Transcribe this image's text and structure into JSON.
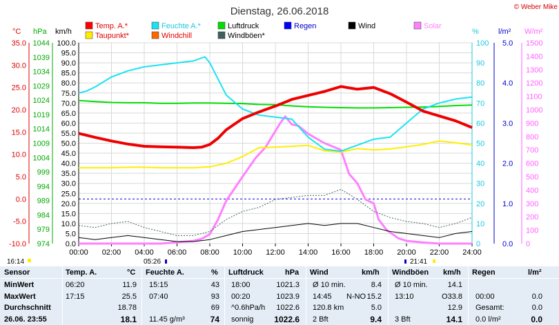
{
  "title": "Dienstag, 26.06.2018",
  "copyright": "© Weber Mike",
  "legend": [
    {
      "label": "Temp. A.*",
      "color": "#ff0000"
    },
    {
      "label": "Feuchte A.*",
      "color": "#19e2f2"
    },
    {
      "label": "Luftdruck",
      "color": "#00dd00"
    },
    {
      "label": "Regen",
      "color": "#0000ff"
    },
    {
      "label": "Wind",
      "color": "#000000"
    },
    {
      "label": "Solar",
      "color": "#ff80ff"
    },
    {
      "label": "Taupunkt*",
      "color": "#ffee00"
    },
    {
      "label": "Windchill",
      "color": "#ff6600"
    },
    {
      "label": "Windböen*",
      "color": "#406060"
    }
  ],
  "axes_units": {
    "temp": "°C",
    "pressure": "hPa",
    "wind": "km/h",
    "humidity": "%",
    "rain": "l/m²",
    "solar": "W/m²"
  },
  "chart_data": {
    "type": "line",
    "x_ticks": [
      "00:00",
      "02:00",
      "04:00",
      "06:00",
      "08:00",
      "10:00",
      "12:00",
      "14:00",
      "16:00",
      "18:00",
      "20:00",
      "22:00",
      "24:00"
    ],
    "temp_ticks": [
      "35.0",
      "30.0",
      "25.0",
      "20.0",
      "15.0",
      "10.0",
      "5.0",
      "0.0",
      "-5.0",
      "-10.0"
    ],
    "pressure_ticks": [
      "1044",
      "1039",
      "1034",
      "1029",
      "1024",
      "1019",
      "1014",
      "1009",
      "1004",
      "999",
      "994",
      "989",
      "984",
      "979",
      "974"
    ],
    "wind_ticks": [
      "100.0",
      "95.0",
      "90.0",
      "85.0",
      "80.0",
      "75.0",
      "70.0",
      "65.0",
      "60.0",
      "55.0",
      "50.0",
      "45.0",
      "40.0",
      "35.0",
      "30.0",
      "25.0",
      "20.0",
      "15.0",
      "10.0",
      "5.0",
      "0.0"
    ],
    "humidity_ticks": [
      "100",
      "90",
      "80",
      "70",
      "60",
      "50",
      "40",
      "30",
      "20",
      "10",
      "0"
    ],
    "rain_ticks": [
      "5.0",
      "4.0",
      "3.0",
      "2.0",
      "1.0",
      "0.0"
    ],
    "solar_ticks": [
      "1500",
      "1400",
      "1300",
      "1200",
      "1100",
      "1000",
      "900",
      "800",
      "700",
      "600",
      "500",
      "400",
      "300",
      "200",
      "100",
      "0"
    ],
    "temp_range": [
      -10,
      35
    ],
    "pressure_range": [
      974,
      1044
    ],
    "wind_range": [
      0,
      100
    ],
    "humidity_range": [
      0,
      100
    ],
    "solar_range": [
      0,
      1500
    ],
    "series": [
      {
        "name": "Temp. A.*",
        "axis": "temp",
        "x": [
          0,
          1,
          2,
          3,
          4,
          5,
          6,
          7,
          7.5,
          8,
          8.5,
          9,
          10,
          11,
          12,
          13,
          14,
          15,
          16,
          17,
          18,
          19,
          20,
          21,
          22,
          23,
          24
        ],
        "y": [
          14.7,
          13.8,
          13.0,
          12.3,
          11.8,
          11.7,
          11.6,
          11.5,
          11.6,
          12.2,
          13.6,
          15.5,
          18.0,
          19.5,
          20.8,
          22.3,
          23.2,
          24.1,
          25.2,
          24.6,
          25.0,
          23.6,
          21.7,
          19.7,
          18.6,
          17.5,
          16.0
        ]
      },
      {
        "name": "Feuchte A.*",
        "axis": "humidity",
        "x": [
          0,
          0.5,
          1,
          2,
          3,
          4,
          5,
          6,
          7,
          7.7,
          8,
          8.5,
          9,
          10,
          11,
          12,
          13,
          14,
          15,
          16,
          17,
          18,
          19,
          20,
          21,
          22,
          23,
          24
        ],
        "y": [
          75,
          76,
          78,
          83,
          86,
          88,
          89,
          90,
          91,
          93,
          90,
          82,
          74,
          67,
          64,
          63,
          62,
          53,
          47,
          46,
          49,
          52,
          53,
          60,
          67,
          70,
          72,
          73
        ]
      },
      {
        "name": "Luftdruck",
        "axis": "pressure",
        "x": [
          0,
          1,
          2,
          3,
          4,
          5,
          6,
          7,
          8,
          9,
          10,
          11,
          12,
          13,
          14,
          15,
          16,
          17,
          18,
          19,
          20,
          21,
          22,
          23,
          24
        ],
        "y": [
          1023.9,
          1023.5,
          1023.2,
          1023.1,
          1023.1,
          1022.9,
          1022.9,
          1023.0,
          1023.0,
          1022.9,
          1022.8,
          1022.5,
          1022.4,
          1022.0,
          1021.7,
          1021.5,
          1021.4,
          1021.3,
          1021.3,
          1021.4,
          1021.5,
          1021.6,
          1021.8,
          1022.1,
          1022.3
        ]
      },
      {
        "name": "Taupunkt*",
        "axis": "temp",
        "x": [
          0,
          1,
          2,
          3,
          4,
          5,
          6,
          7,
          8,
          9,
          10,
          11,
          12,
          13,
          14,
          15,
          16,
          17,
          18,
          19,
          20,
          21,
          22,
          23,
          24
        ],
        "y": [
          7.0,
          7.0,
          7.0,
          7.1,
          7.1,
          7.0,
          7.0,
          7.0,
          7.2,
          8.0,
          9.5,
          11.5,
          11.6,
          11.8,
          12.0,
          10.8,
          10.5,
          11.3,
          11.0,
          11.2,
          11.7,
          12.2,
          13.0,
          12.6,
          12.1
        ]
      },
      {
        "name": "Wind",
        "axis": "wind",
        "x": [
          0,
          1,
          2,
          3,
          4,
          5,
          6,
          7,
          8,
          9,
          10,
          11,
          12,
          13,
          14,
          15,
          16,
          17,
          18,
          19,
          20,
          21,
          22,
          23,
          24
        ],
        "y": [
          3,
          2,
          3,
          4,
          3,
          2,
          1,
          1,
          2,
          4,
          6,
          7,
          8,
          9,
          10,
          9,
          10,
          10,
          8,
          6,
          5,
          4,
          3,
          5,
          6
        ]
      },
      {
        "name": "Windböen*",
        "axis": "wind",
        "x": [
          0,
          1,
          2,
          3,
          4,
          5,
          6,
          7,
          8,
          9,
          10,
          11,
          12,
          13,
          14,
          15,
          16,
          17,
          18,
          19,
          20,
          21,
          22,
          23,
          24
        ],
        "y": [
          9,
          8,
          10,
          11,
          8,
          6,
          4,
          4,
          6,
          12,
          16,
          18,
          22,
          23,
          24,
          24,
          27,
          22,
          16,
          13,
          11,
          10,
          8,
          10,
          13
        ]
      },
      {
        "name": "Solar",
        "axis": "solar",
        "x": [
          0,
          5,
          6,
          7,
          7.5,
          8,
          8.5,
          9,
          10,
          10.8,
          11.4,
          12,
          12.3,
          12.6,
          13,
          13.4,
          14,
          15,
          16,
          16.5,
          17,
          17.5,
          18,
          18.3,
          18.8,
          19.5,
          20,
          21,
          22,
          24
        ],
        "y": [
          0,
          0,
          10,
          20,
          35,
          70,
          180,
          320,
          500,
          640,
          720,
          840,
          900,
          950,
          890,
          880,
          820,
          750,
          700,
          520,
          450,
          330,
          300,
          180,
          100,
          40,
          20,
          8,
          0,
          0
        ]
      }
    ]
  },
  "current_time_marker": "16:14",
  "sunrise": "05:26",
  "sunset": "21:41",
  "stats": {
    "headers": {
      "sensor": "Sensor",
      "temp": "Temp. A.",
      "temp_unit": "°C",
      "hum": "Feuchte A.",
      "hum_unit": "%",
      "press": "Luftdruck",
      "press_unit": "hPa",
      "wind": "Wind",
      "wind_unit": "km/h",
      "gust": "Windböen",
      "gust_unit": "km/h",
      "rain": "Regen",
      "rain_unit": "l/m²"
    },
    "rows": [
      {
        "label": "MinWert",
        "temp_time": "06:20",
        "temp_val": "11.9",
        "hum_time": "15:15",
        "hum_val": "43",
        "press_time": "18:00",
        "press_val": "1021.3",
        "wind_a": "Ø 10 min.",
        "wind_b": "8.4",
        "gust_a": "Ø 10 min.",
        "gust_b": "14.1",
        "rain_a": "",
        "rain_b": ""
      },
      {
        "label": "MaxWert",
        "temp_time": "17:15",
        "temp_val": "25.5",
        "hum_time": "07:40",
        "hum_val": "93",
        "press_time": "00:20",
        "press_val": "1023.9",
        "wind_a": "14:45",
        "wind_dir": "N-NO",
        "wind_b": "15.2",
        "gust_a": "13:10",
        "gust_dir": "O",
        "gust_b": "33.8",
        "rain_a": "00:00",
        "rain_b": "0.0"
      },
      {
        "label": "Durchschnitt",
        "temp_time": "",
        "temp_val": "18.78",
        "hum_time": "",
        "hum_val": "69",
        "press_time": "^0.6hPa/h",
        "press_val": "1022.6",
        "wind_a": "120.8 km",
        "wind_b": "5.0",
        "gust_a": "",
        "gust_b": "12.9",
        "rain_a": "Gesamt:",
        "rain_b": "0.0"
      },
      {
        "label": "26.06. 23:55",
        "temp_time": "",
        "temp_val": "18.1",
        "hum_time": "11.45 g/m³",
        "hum_val": "74",
        "press_time": "sonnig",
        "press_val": "1022.6",
        "wind_a": "2 Bft",
        "wind_b": "9.4",
        "gust_a": "3 Bft",
        "gust_b": "14.1",
        "rain_a": "0.0 l/m²",
        "rain_b": "0.0"
      }
    ]
  }
}
